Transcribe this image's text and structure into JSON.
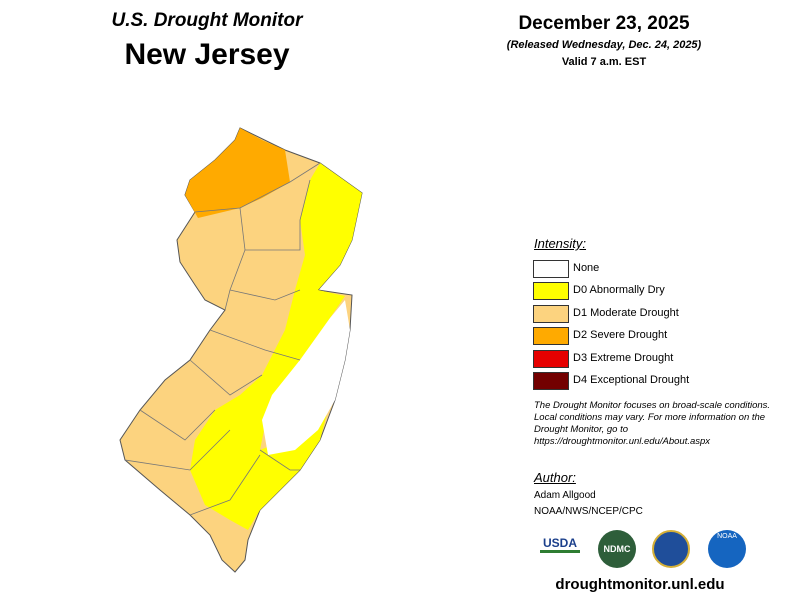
{
  "header": {
    "title": "U.S. Drought Monitor",
    "state": "New Jersey",
    "date": "December 23, 2025",
    "released": "(Released Wednesday, Dec. 24, 2025)",
    "valid": "Valid 7 a.m. EST"
  },
  "legend": {
    "title": "Intensity:",
    "items": [
      {
        "label": "None",
        "color": "#ffffff"
      },
      {
        "label": "D0 Abnormally Dry",
        "color": "#ffff00"
      },
      {
        "label": "D1 Moderate Drought",
        "color": "#fcd37f"
      },
      {
        "label": "D2 Severe Drought",
        "color": "#ffaa00"
      },
      {
        "label": "D3 Extreme Drought",
        "color": "#e60000"
      },
      {
        "label": "D4 Exceptional Drought",
        "color": "#730000"
      }
    ]
  },
  "note": "The Drought Monitor focuses on broad-scale conditions. Local conditions may vary. For more information on the Drought Monitor, go to https://droughtmonitor.unl.edu/About.aspx",
  "author": {
    "title": "Author:",
    "name": "Adam Allgood",
    "org": "NOAA/NWS/NCEP/CPC"
  },
  "logos": [
    "USDA",
    "NDMC",
    "NOAA"
  ],
  "url": "droughtmonitor.unl.edu"
}
